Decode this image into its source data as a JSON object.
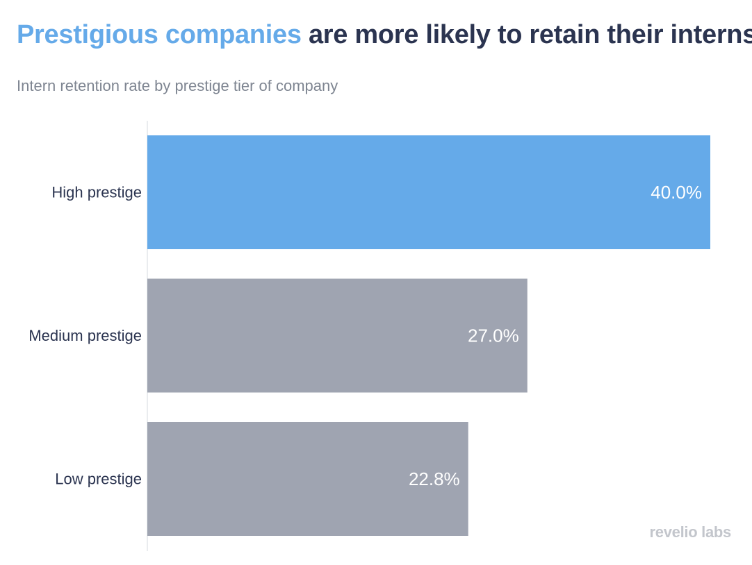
{
  "title": {
    "highlight": "Prestigious companies",
    "rest": " are more likely to retain their interns"
  },
  "subtitle": "Intern retention rate by prestige tier of company",
  "watermark": "revelio labs",
  "colors": {
    "highlight": "#65aae9",
    "neutral": "#9fa4b1",
    "title": "#2b3450",
    "axis": "#e4e6ea"
  },
  "chart_data": {
    "type": "bar",
    "orientation": "horizontal",
    "title": "Prestigious companies are more likely to retain their interns",
    "subtitle": "Intern retention rate by prestige tier of company",
    "categories": [
      "High prestige",
      "Medium prestige",
      "Low prestige"
    ],
    "values": [
      40.0,
      27.0,
      22.8
    ],
    "value_labels": [
      "40.0%",
      "27.0%",
      "22.8%"
    ],
    "highlighted": [
      true,
      false,
      false
    ],
    "unit": "%",
    "grid": false,
    "legend": "none"
  }
}
